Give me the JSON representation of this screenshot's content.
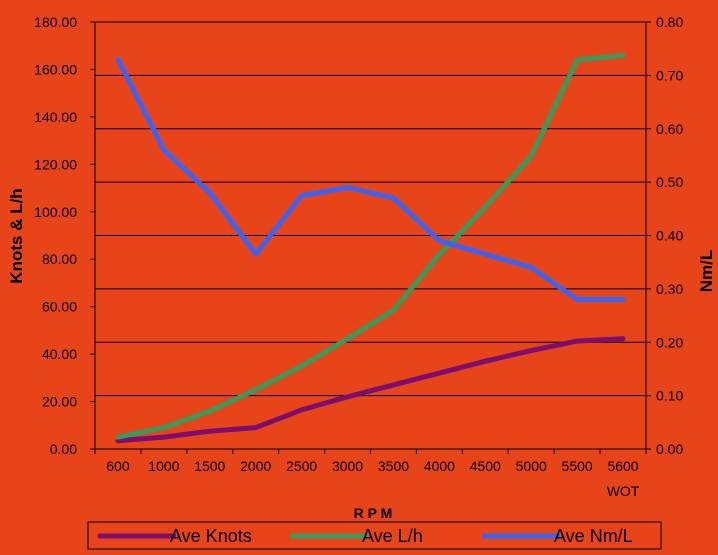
{
  "chart_data": {
    "type": "line",
    "categories": [
      "600",
      "1000",
      "1500",
      "2000",
      "2500",
      "3000",
      "3500",
      "4000",
      "4500",
      "5000",
      "5500",
      "5600\nWOT"
    ],
    "xlabel": "R P M",
    "ylabel_left": "Knots & L/h",
    "ylabel_right": "Nm/L",
    "ylim_left": [
      0,
      180
    ],
    "yticks_left": [
      "0.00",
      "20.00",
      "40.00",
      "60.00",
      "80.00",
      "100.00",
      "120.00",
      "140.00",
      "160.00",
      "180.00"
    ],
    "ylim_right": [
      0,
      0.8
    ],
    "yticks_right": [
      "0.00",
      "0.10",
      "0.20",
      "0.30",
      "0.40",
      "0.50",
      "0.60",
      "0.70",
      "0.80"
    ],
    "grid": true,
    "legend_position": "bottom",
    "series": [
      {
        "name": "Ave Knots",
        "axis": "left",
        "color": "#7b0e6e",
        "values": [
          3.5,
          5,
          7.5,
          9,
          16.5,
          22,
          27,
          32,
          37,
          41.5,
          45.5,
          46.5
        ]
      },
      {
        "name": "Ave L/h",
        "axis": "left",
        "color": "#3a9a5b",
        "values": [
          5,
          9,
          16,
          25,
          35,
          46.5,
          58.5,
          82,
          102,
          123.5,
          164,
          166
        ]
      },
      {
        "name": "Ave Nm/L",
        "axis": "right",
        "color": "#3d63f2",
        "values": [
          0.73,
          0.56,
          0.48,
          0.365,
          0.475,
          0.49,
          0.47,
          0.39,
          0.365,
          0.34,
          0.28,
          0.28
        ]
      }
    ]
  }
}
